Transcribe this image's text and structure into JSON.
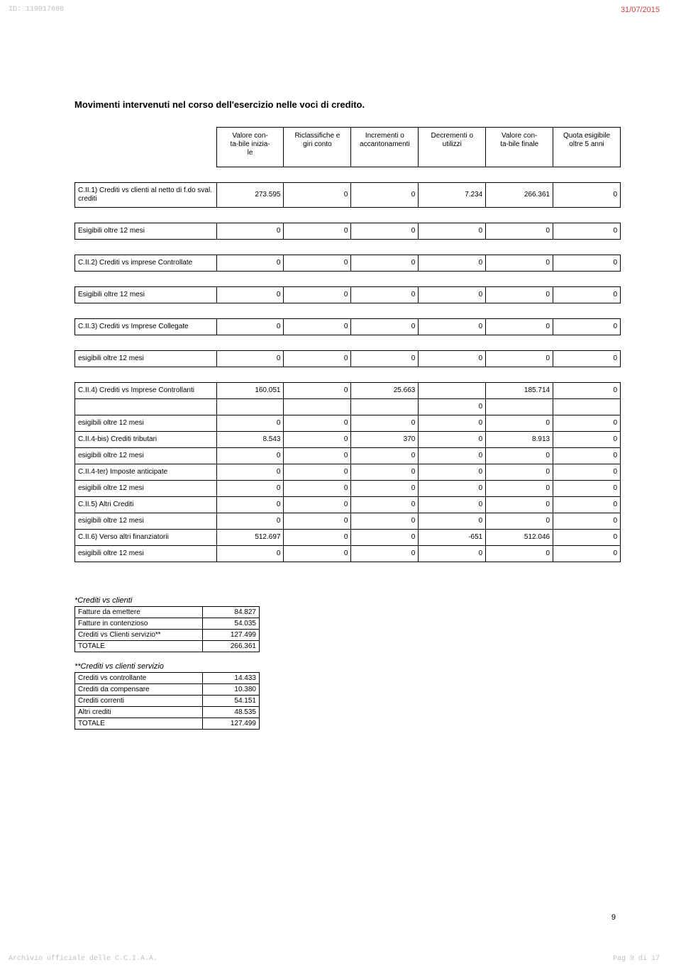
{
  "header": {
    "id": "ID: 119017608",
    "date": "31/07/2015"
  },
  "title": "Movimenti intervenuti nel corso dell'esercizio nelle voci di credito.",
  "columns": [
    "Valore con-\nta-bile inizia-\nle",
    "Riclassifiche e\ngiri conto",
    "Incrementi o\naccantonamenti",
    "Decrementi o\nutilizzi",
    "Valore con-\nta-bile finale",
    "Quota esigibile\noltre 5 anni"
  ],
  "rows": [
    {
      "label": "C.II.1) Crediti vs clienti  al netto di f.do sval. crediti",
      "v": [
        "273.595",
        "0",
        "0",
        "7.234",
        "266.361",
        "0"
      ],
      "gapBefore": true
    },
    {
      "label": "Esigibili oltre 12 mesi",
      "v": [
        "0",
        "0",
        "0",
        "0",
        "0",
        "0"
      ],
      "gapBefore": true
    },
    {
      "label": "C.II.2) Crediti vs imprese Controllate",
      "v": [
        "0",
        "0",
        "0",
        "0",
        "0",
        "0"
      ],
      "gapBefore": true
    },
    {
      "label": "Esigibili oltre 12 mesi",
      "v": [
        "0",
        "0",
        "0",
        "0",
        "0",
        "0"
      ],
      "gapBefore": true
    },
    {
      "label": "C.II.3) Crediti vs Imprese Collegate",
      "v": [
        "0",
        "0",
        "0",
        "0",
        "0",
        "0"
      ],
      "gapBefore": true
    },
    {
      "label": "esigibili oltre 12 mesi",
      "v": [
        "0",
        "0",
        "0",
        "0",
        "0",
        "0"
      ],
      "gapBefore": true
    },
    {
      "label": "C.II.4) Crediti vs Imprese Controllanti",
      "v": [
        "160.051",
        "0",
        "25.663",
        "",
        "185.714",
        "0"
      ],
      "gapBefore": true
    },
    {
      "label": "",
      "v": [
        "",
        "",
        "",
        "0",
        "",
        ""
      ]
    },
    {
      "label": "esigibili oltre 12 mesi",
      "v": [
        "0",
        "0",
        "0",
        "0",
        "0",
        "0"
      ]
    },
    {
      "label": "C.II.4-bis) Crediti tributari",
      "v": [
        "8.543",
        "0",
        "370",
        "0",
        "8.913",
        "0"
      ]
    },
    {
      "label": "esigibili oltre 12 mesi",
      "v": [
        "0",
        "0",
        "0",
        "0",
        "0",
        "0"
      ]
    },
    {
      "label": "C.II.4-ter) Imposte anticipate",
      "v": [
        "0",
        "0",
        "0",
        "0",
        "0",
        "0"
      ]
    },
    {
      "label": "esigibili oltre 12 mesi",
      "v": [
        "0",
        "0",
        "0",
        "0",
        "0",
        "0"
      ]
    },
    {
      "label": "C.II.5) Altri Crediti",
      "v": [
        "0",
        "0",
        "0",
        "0",
        "0",
        "0"
      ]
    },
    {
      "label": "esigibili oltre 12 mesi",
      "v": [
        "0",
        "0",
        "0",
        "0",
        "0",
        "0"
      ]
    },
    {
      "label": "C.II.6) Verso altri finanziatorii",
      "v": [
        "512.697",
        "0",
        "0",
        "-651",
        "512.046",
        "0"
      ]
    },
    {
      "label": "esigibili oltre 12 mesi",
      "v": [
        "0",
        "0",
        "0",
        "0",
        "0",
        "0"
      ]
    }
  ],
  "sec1": {
    "title": "*Crediti vs clienti",
    "rows": [
      [
        "Fatture da emettere",
        "84.827"
      ],
      [
        "Fatture in contenzioso",
        "54.035"
      ],
      [
        "Crediti vs Clienti servizio**",
        "127.499"
      ],
      [
        "TOTALE",
        "266.361"
      ]
    ]
  },
  "sec2": {
    "title": "**Crediti vs clienti servizio",
    "rows": [
      [
        "Crediti vs controllante",
        "14.433"
      ],
      [
        "Crediti da compensare",
        "10.380"
      ],
      [
        "Crediti correnti",
        "54.151"
      ],
      [
        "Altri crediti",
        "48.535"
      ],
      [
        "TOTALE",
        "127.499"
      ]
    ]
  },
  "pageNum": "9",
  "footer": {
    "left": "Archivio ufficiale delle C.C.I.A.A.",
    "right": "Pag 9 di 17"
  }
}
